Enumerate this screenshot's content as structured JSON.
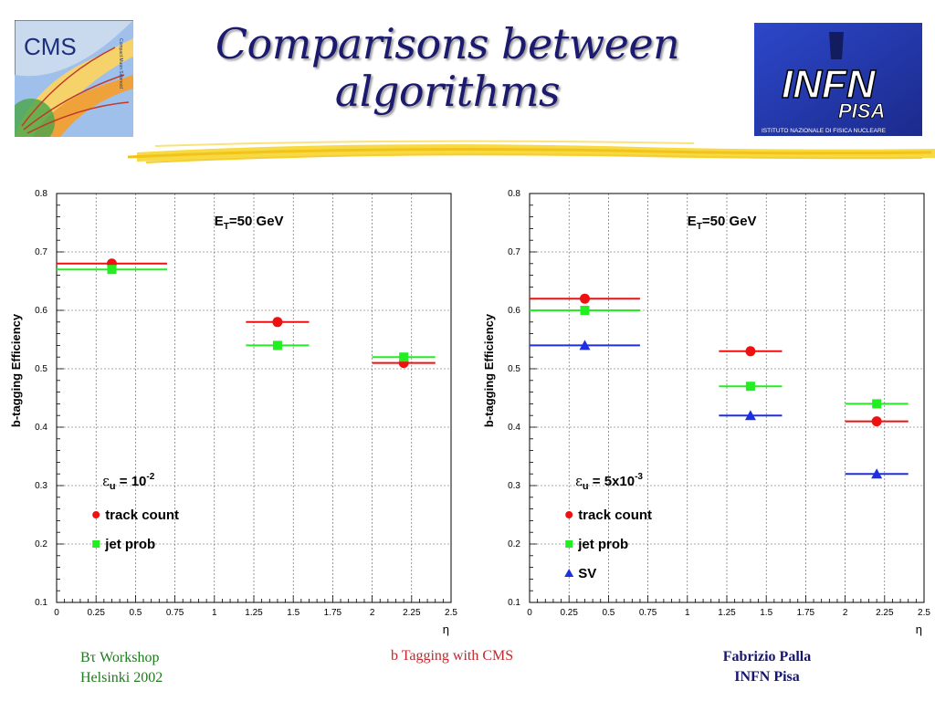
{
  "title_line1": "Comparisons between",
  "title_line2": "algorithms",
  "logos": {
    "cms": {
      "text": "CMS",
      "subtext": "Compact Muon Solenoid"
    },
    "infn": {
      "text": "INFN",
      "sub": "PISA",
      "caption": "ISTITUTO NAZIONALE DI FISICA NUCLEARE"
    }
  },
  "footer": {
    "left_line1": "Bτ Workshop",
    "left_line2": "Helsinki 2002",
    "center": "b Tagging with CMS",
    "right_line1": "Fabrizio Palla",
    "right_line2": "INFN Pisa"
  },
  "colors": {
    "red": "#ee1111",
    "green": "#22ee22",
    "blue": "#1f2fe0",
    "title": "#1b1a6e"
  },
  "chart_data": [
    {
      "type": "scatter",
      "ylabel": "b-tagging Efficiency",
      "xlabel": "η",
      "xlim": [
        0,
        2.5
      ],
      "ylim": [
        0.1,
        0.8
      ],
      "xticks": [
        "0",
        "0.25",
        "0.5",
        "0.75",
        "1",
        "1.25",
        "1.5",
        "1.75",
        "2",
        "2.25",
        "2.5"
      ],
      "yticks": [
        "0.1",
        "0.2",
        "0.3",
        "0.4",
        "0.5",
        "0.6",
        "0.7",
        "0.8"
      ],
      "grid": true,
      "annotation_prefix": "E",
      "annotation_sub": "T",
      "annotation_suffix": "=50 GeV",
      "legend_eps_symbol": "ε",
      "legend_eps_sub": "u",
      "legend_eps_eq": " = 10",
      "legend_eps_exp": "-2",
      "series": [
        {
          "name": "track count",
          "color": "#ee1111",
          "marker": "circle",
          "points": [
            {
              "x": 0.35,
              "y": 0.68,
              "xlo": 0.0,
              "xhi": 0.7
            },
            {
              "x": 1.4,
              "y": 0.58,
              "xlo": 1.2,
              "xhi": 1.6
            },
            {
              "x": 2.2,
              "y": 0.51,
              "xlo": 2.0,
              "xhi": 2.4
            }
          ]
        },
        {
          "name": "jet prob",
          "color": "#22ee22",
          "marker": "square",
          "points": [
            {
              "x": 0.35,
              "y": 0.67,
              "xlo": 0.0,
              "xhi": 0.7
            },
            {
              "x": 1.4,
              "y": 0.54,
              "xlo": 1.2,
              "xhi": 1.6
            },
            {
              "x": 2.2,
              "y": 0.52,
              "xlo": 2.0,
              "xhi": 2.4
            }
          ]
        }
      ]
    },
    {
      "type": "scatter",
      "ylabel": "b-tagging Efficiency",
      "xlabel": "η",
      "xlim": [
        0,
        2.5
      ],
      "ylim": [
        0.1,
        0.8
      ],
      "xticks": [
        "0",
        "0.25",
        "0.5",
        "0.75",
        "1",
        "1.25",
        "1.5",
        "1.75",
        "2",
        "2.25",
        "2.5"
      ],
      "yticks": [
        "0.1",
        "0.2",
        "0.3",
        "0.4",
        "0.5",
        "0.6",
        "0.7",
        "0.8"
      ],
      "grid": true,
      "annotation_prefix": "E",
      "annotation_sub": "T",
      "annotation_suffix": "=50 GeV",
      "legend_eps_symbol": "ε",
      "legend_eps_sub": "u",
      "legend_eps_eq": " = 5x10",
      "legend_eps_exp": "-3",
      "series": [
        {
          "name": "track count",
          "color": "#ee1111",
          "marker": "circle",
          "points": [
            {
              "x": 0.35,
              "y": 0.62,
              "xlo": 0.0,
              "xhi": 0.7
            },
            {
              "x": 1.4,
              "y": 0.53,
              "xlo": 1.2,
              "xhi": 1.6
            },
            {
              "x": 2.2,
              "y": 0.41,
              "xlo": 2.0,
              "xhi": 2.4
            }
          ]
        },
        {
          "name": "jet prob",
          "color": "#22ee22",
          "marker": "square",
          "points": [
            {
              "x": 0.35,
              "y": 0.6,
              "xlo": 0.0,
              "xhi": 0.7
            },
            {
              "x": 1.4,
              "y": 0.47,
              "xlo": 1.2,
              "xhi": 1.6
            },
            {
              "x": 2.2,
              "y": 0.44,
              "xlo": 2.0,
              "xhi": 2.4
            }
          ]
        },
        {
          "name": "SV",
          "color": "#1f2fe0",
          "marker": "triangle",
          "points": [
            {
              "x": 0.35,
              "y": 0.54,
              "xlo": 0.0,
              "xhi": 0.7
            },
            {
              "x": 1.4,
              "y": 0.42,
              "xlo": 1.2,
              "xhi": 1.6
            },
            {
              "x": 2.2,
              "y": 0.32,
              "xlo": 2.0,
              "xhi": 2.4
            }
          ]
        }
      ]
    }
  ]
}
